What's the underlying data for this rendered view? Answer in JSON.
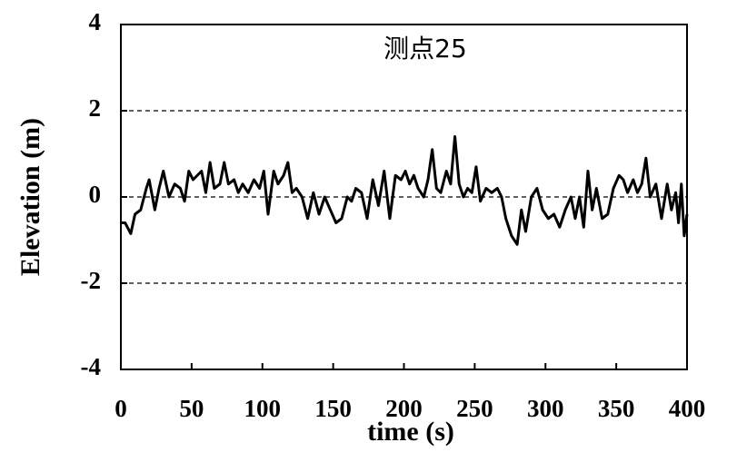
{
  "chart_data": {
    "type": "line",
    "title": "测点25",
    "xlabel": "time (s)",
    "ylabel": "Elevation (m)",
    "x": [
      0,
      3,
      7,
      10,
      14,
      18,
      20,
      24,
      27,
      30,
      34,
      38,
      42,
      45,
      48,
      51,
      54,
      57,
      60,
      63,
      66,
      70,
      73,
      76,
      80,
      83,
      86,
      90,
      94,
      98,
      101,
      104,
      108,
      111,
      115,
      118,
      121,
      124,
      128,
      132,
      136,
      140,
      144,
      148,
      152,
      156,
      160,
      163,
      166,
      170,
      174,
      178,
      182,
      186,
      190,
      194,
      198,
      201,
      204,
      207,
      210,
      214,
      217,
      220,
      223,
      226,
      230,
      233,
      236,
      239,
      242,
      245,
      248,
      251,
      254,
      258,
      262,
      266,
      269,
      272,
      276,
      280,
      283,
      286,
      290,
      294,
      298,
      302,
      306,
      310,
      314,
      318,
      321,
      324,
      327,
      330,
      333,
      336,
      340,
      344,
      348,
      352,
      355,
      358,
      362,
      365,
      368,
      371,
      374,
      378,
      382,
      386,
      389,
      392,
      394,
      396,
      398,
      400
    ],
    "series": [
      {
        "name": "测点25",
        "color": "#000000",
        "values": [
          -0.6,
          -0.6,
          -0.85,
          -0.4,
          -0.3,
          0.2,
          0.4,
          -0.3,
          0.2,
          0.6,
          0.0,
          0.3,
          0.2,
          -0.1,
          0.6,
          0.4,
          0.5,
          0.6,
          0.1,
          0.8,
          0.2,
          0.3,
          0.8,
          0.3,
          0.4,
          0.1,
          0.3,
          0.1,
          0.4,
          0.2,
          0.6,
          -0.4,
          0.6,
          0.3,
          0.5,
          0.8,
          0.1,
          0.2,
          0.0,
          -0.5,
          0.1,
          -0.4,
          0.0,
          -0.3,
          -0.6,
          -0.5,
          0.0,
          -0.1,
          0.2,
          0.1,
          -0.5,
          0.4,
          -0.2,
          0.6,
          -0.5,
          0.5,
          0.4,
          0.6,
          0.3,
          0.5,
          0.2,
          0.0,
          0.4,
          1.1,
          0.2,
          0.1,
          0.6,
          0.3,
          1.4,
          0.3,
          0.0,
          0.2,
          0.1,
          0.7,
          -0.1,
          0.2,
          0.1,
          0.2,
          0.0,
          -0.5,
          -0.9,
          -1.1,
          -0.3,
          -0.8,
          0.0,
          0.2,
          -0.3,
          -0.5,
          -0.4,
          -0.7,
          -0.3,
          0.0,
          -0.5,
          0.0,
          -0.7,
          0.6,
          -0.3,
          0.2,
          -0.5,
          -0.4,
          0.2,
          0.5,
          0.4,
          0.1,
          0.4,
          0.1,
          0.3,
          0.9,
          0.0,
          0.3,
          -0.5,
          0.3,
          -0.3,
          0.1,
          -0.6,
          0.3,
          -0.9,
          -0.4
        ]
      }
    ],
    "xlim": [
      0,
      400
    ],
    "xticks": [
      0,
      50,
      100,
      150,
      200,
      250,
      300,
      350,
      400
    ],
    "ylim": [
      -4,
      4
    ],
    "yticks": [
      4,
      2,
      0,
      -2,
      -4
    ],
    "grid": true
  }
}
